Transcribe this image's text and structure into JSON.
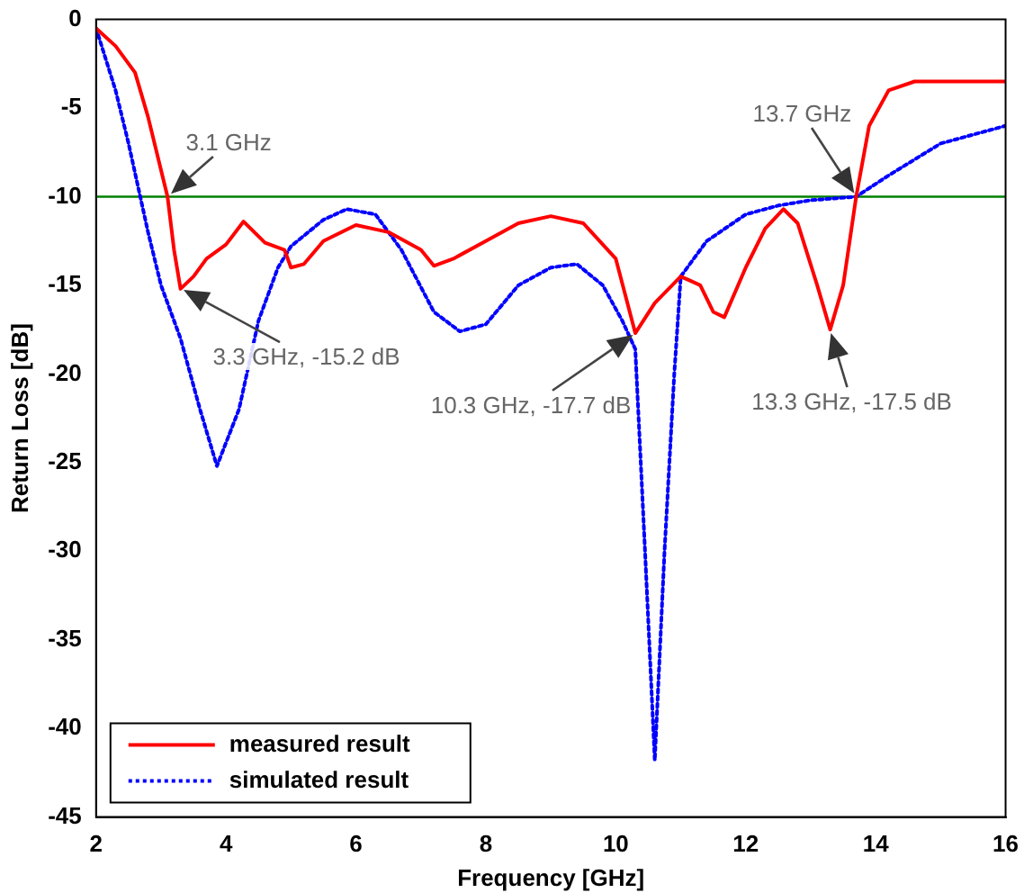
{
  "chart_data": {
    "type": "line",
    "xlabel": "Frequency [GHz]",
    "ylabel": "Return Loss [dB]",
    "xlim": [
      2,
      16
    ],
    "xticks": [
      2,
      4,
      6,
      8,
      10,
      12,
      14,
      16
    ],
    "ylim": [
      -45,
      0
    ],
    "yticks": [
      -45,
      -40,
      -35,
      -30,
      -25,
      -20,
      -15,
      -10,
      -5,
      0
    ],
    "grid": false,
    "legend": "bottom left",
    "marker": "none",
    "ref_lines": [
      {
        "axis": "y",
        "value": -10,
        "color": "#008000"
      }
    ],
    "annotations": [
      {
        "text": "3.1 GHz",
        "x": 3.1,
        "y": -10
      },
      {
        "text": "3.3 GHz, -15.2 dB",
        "x": 3.3,
        "y": -15.2
      },
      {
        "text": "10.3 GHz, -17.7 dB",
        "x": 10.3,
        "y": -17.7
      },
      {
        "text": "13.3 GHz, -17.5 dB",
        "x": 13.3,
        "y": -17.5
      },
      {
        "text": "13.7 GHz",
        "x": 13.7,
        "y": -10
      }
    ],
    "series": [
      {
        "name": "measured result",
        "color": "#ff0000",
        "line_style": "solid",
        "x": [
          2,
          2.3,
          2.6,
          2.8,
          3,
          3.1,
          3.2,
          3.3,
          3.5,
          3.7,
          4,
          4.27,
          4.6,
          4.9,
          5,
          5.2,
          5.5,
          6,
          6.5,
          7,
          7.2,
          7.5,
          8,
          8.5,
          9,
          9.5,
          10,
          10.3,
          10.6,
          11,
          11.3,
          11.5,
          11.67,
          12,
          12.3,
          12.58,
          12.8,
          13.1,
          13.3,
          13.5,
          13.7,
          13.9,
          14.2,
          14.6,
          15,
          16
        ],
        "values": [
          -0.5,
          -1.5,
          -3,
          -5.5,
          -8.5,
          -10,
          -13,
          -15.2,
          -14.5,
          -13.5,
          -12.7,
          -11.4,
          -12.6,
          -13,
          -14,
          -13.8,
          -12.5,
          -11.6,
          -12,
          -13,
          -13.9,
          -13.5,
          -12.5,
          -11.5,
          -11.1,
          -11.5,
          -13.5,
          -17.7,
          -16,
          -14.5,
          -15,
          -16.5,
          -16.8,
          -14,
          -11.8,
          -10.7,
          -11.5,
          -15,
          -17.5,
          -15,
          -10,
          -6,
          -4,
          -3.5,
          -3.5,
          -3.5
        ]
      },
      {
        "name": "simulated result",
        "color": "#0000ff",
        "line_style": "dotted",
        "x": [
          2,
          2.3,
          2.5,
          2.8,
          3,
          3.3,
          3.6,
          3.86,
          4.2,
          4.5,
          4.8,
          5,
          5.5,
          5.86,
          6.3,
          6.7,
          7.2,
          7.6,
          8,
          8.5,
          9,
          9.4,
          9.8,
          10.1,
          10.3,
          10.45,
          10.6,
          10.75,
          10.9,
          11,
          11.4,
          12,
          12.5,
          13,
          13.7,
          14.2,
          15,
          16
        ],
        "values": [
          -0.5,
          -4,
          -7,
          -12,
          -15,
          -18,
          -22,
          -25.2,
          -22,
          -17,
          -14,
          -12.8,
          -11.3,
          -10.7,
          -11,
          -13,
          -16.5,
          -17.6,
          -17.2,
          -15,
          -14,
          -13.8,
          -15,
          -17,
          -18.6,
          -30,
          -41.8,
          -30,
          -20,
          -14.5,
          -12.5,
          -11,
          -10.5,
          -10.2,
          -10,
          -8.8,
          -7,
          -6
        ]
      }
    ]
  }
}
